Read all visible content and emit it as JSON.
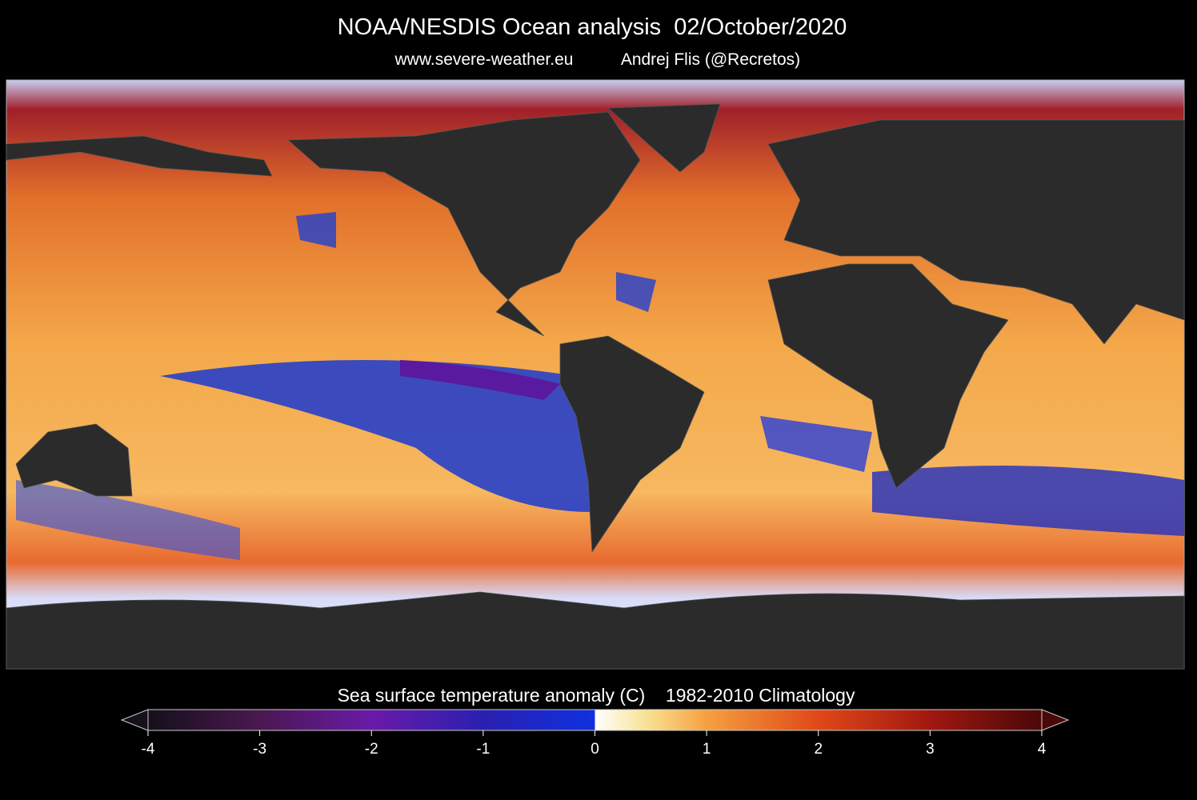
{
  "header": {
    "title": "NOAA/NESDIS Ocean analysis  02/October/2020",
    "source": "www.severe-weather.eu",
    "author": "Andrej Flis (@Recretos)"
  },
  "colorbar": {
    "title": "Sea surface temperature anomaly (C)    1982-2010 Climatology",
    "ticks": [
      -4,
      -3,
      -2,
      -1,
      0,
      1,
      2,
      3,
      4
    ]
  }
}
